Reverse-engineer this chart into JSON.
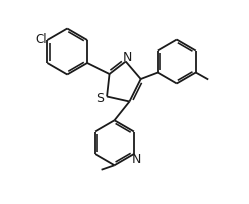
{
  "background": "#ffffff",
  "line_color": "#1a1a1a",
  "line_width": 1.3,
  "font_size": 8.5,
  "fig_width": 2.49,
  "fig_height": 2.05,
  "dpi": 100,
  "xlim": [
    0,
    10
  ],
  "ylim": [
    0,
    8.2
  ]
}
